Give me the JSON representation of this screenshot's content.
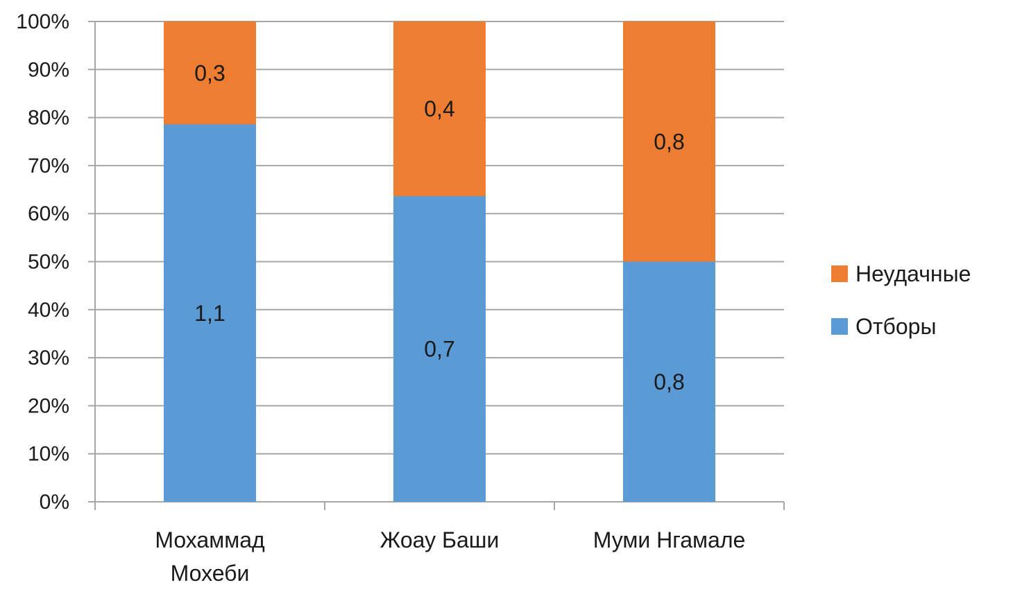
{
  "chart_data": {
    "type": "bar",
    "stacked": true,
    "normalized_percent": true,
    "categories": [
      "Мохаммад Мохеби",
      "Жоау Баши",
      "Муми Нгамале"
    ],
    "category_lines": [
      [
        "Мохаммад",
        "Мохеби"
      ],
      [
        "Жоау Баши"
      ],
      [
        "Муми Нгамале"
      ]
    ],
    "series": [
      {
        "name": "Отборы",
        "values": [
          1.1,
          0.7,
          0.8
        ],
        "labels": [
          "1,1",
          "0,7",
          "0,8"
        ],
        "color": "#5b9bd5"
      },
      {
        "name": "Неудачные",
        "values": [
          0.3,
          0.4,
          0.8
        ],
        "labels": [
          "0,3",
          "0,4",
          "0,8"
        ],
        "color": "#ed7d31"
      }
    ],
    "ylim": [
      0,
      100
    ],
    "yticks": [
      0,
      10,
      20,
      30,
      40,
      50,
      60,
      70,
      80,
      90,
      100
    ],
    "ytick_labels": [
      "0%",
      "10%",
      "20%",
      "30%",
      "40%",
      "50%",
      "60%",
      "70%",
      "80%",
      "90%",
      "100%"
    ],
    "grid": true,
    "grid_color": "#a6a6a6",
    "axis_color": "#a6a6a6",
    "legend": {
      "placement": "right",
      "order": [
        "Неудачные",
        "Отборы"
      ]
    },
    "title": "",
    "xlabel": "",
    "ylabel": ""
  }
}
